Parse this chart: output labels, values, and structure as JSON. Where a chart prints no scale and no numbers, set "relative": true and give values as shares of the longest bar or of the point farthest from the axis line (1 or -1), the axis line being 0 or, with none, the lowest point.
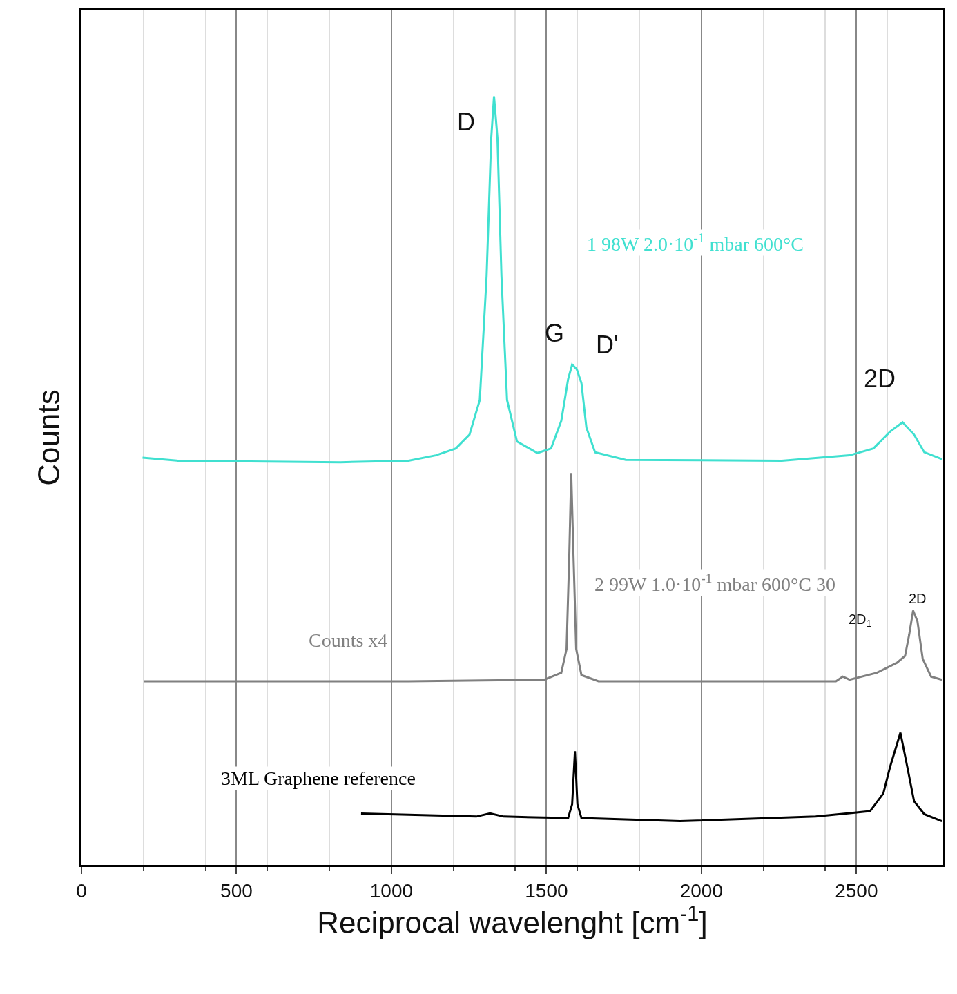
{
  "chart_data": {
    "type": "line",
    "relative": true,
    "xlabel": "Reciprocal wavelenght [cm$^{-1}$]",
    "ylabel": "Counts",
    "xlim": [
      0,
      2780
    ],
    "xticks": [
      0,
      500,
      1000,
      1500,
      2000,
      2500
    ],
    "grid": "x",
    "legend": false,
    "series": [
      {
        "name": "1 98W 2.0·10$^{-1}$ mbar 600°C",
        "color": "#40e0d0",
        "x": [
          197,
          311,
          836,
          1055,
          1143,
          1208,
          1252,
          1285,
          1307,
          1322,
          1331,
          1342,
          1355,
          1373,
          1405,
          1471,
          1515,
          1548,
          1570,
          1583,
          1598,
          1613,
          1629,
          1657,
          1756,
          2259,
          2478,
          2555,
          2609,
          2649,
          2686,
          2719,
          2776
        ],
        "values": [
          0.53,
          0.526,
          0.524,
          0.526,
          0.533,
          0.542,
          0.56,
          0.605,
          0.766,
          0.946,
          1.0,
          0.946,
          0.766,
          0.605,
          0.551,
          0.536,
          0.542,
          0.578,
          0.632,
          0.651,
          0.645,
          0.627,
          0.569,
          0.537,
          0.527,
          0.526,
          0.533,
          0.542,
          0.564,
          0.576,
          0.56,
          0.537,
          0.528
        ]
      },
      {
        "name": "2 99W 1.0·10$^{-1}$ mbar 600°C 30",
        "color": "#808080",
        "x": [
          201,
          1055,
          1493,
          1548,
          1565,
          1574,
          1580,
          1587,
          1596,
          1613,
          1668,
          2434,
          2456,
          2478,
          2566,
          2631,
          2657,
          2670,
          2683,
          2697,
          2714,
          2741,
          2776
        ],
        "values": [
          0.239,
          0.239,
          0.241,
          0.25,
          0.281,
          0.407,
          0.51,
          0.407,
          0.281,
          0.247,
          0.239,
          0.239,
          0.245,
          0.241,
          0.25,
          0.263,
          0.272,
          0.299,
          0.331,
          0.317,
          0.268,
          0.245,
          0.241
        ]
      },
      {
        "name": "3ML Graphene reference",
        "color": "#000000",
        "x": [
          902,
          1274,
          1318,
          1362,
          1570,
          1583,
          1592,
          1600,
          1613,
          1931,
          2369,
          2467,
          2544,
          2587,
          2609,
          2642,
          2664,
          2686,
          2719,
          2776
        ],
        "values": [
          0.067,
          0.063,
          0.067,
          0.063,
          0.061,
          0.079,
          0.148,
          0.079,
          0.061,
          0.057,
          0.063,
          0.067,
          0.07,
          0.093,
          0.128,
          0.172,
          0.128,
          0.083,
          0.066,
          0.057
        ]
      }
    ],
    "annotations": [
      "D",
      "G",
      "D'",
      "2D",
      "2D$_{1}$",
      "2D",
      "Counts x4"
    ]
  }
}
